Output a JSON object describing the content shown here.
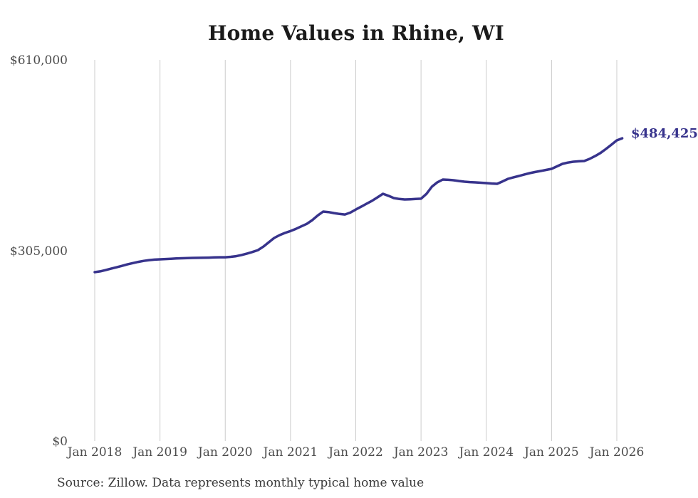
{
  "title": "Home Values in Rhine, WI",
  "end_label": "$484,425",
  "source_note": "Source: Zillow. Data represents monthly typical home value",
  "colors": {
    "line": "#37338c",
    "grid": "#cccccc",
    "title": "#1a1a1a",
    "tick": "#4c4c4c",
    "source": "#3a3a3a",
    "background": "#ffffff"
  },
  "chart_data": {
    "type": "line",
    "title": "Home Values in Rhine, WI",
    "xlabel": "",
    "ylabel": "",
    "ylim": [
      0,
      610000
    ],
    "grid": "vertical-only",
    "legend": "none",
    "frequency": "monthly",
    "x_start": "Jan 2018",
    "x_end": "Feb 2026",
    "x_tick_labels": [
      "Jan 2018",
      "Jan 2019",
      "Jan 2020",
      "Jan 2021",
      "Jan 2022",
      "Jan 2023",
      "Jan 2024",
      "Jan 2025",
      "Jan 2026"
    ],
    "y_tick_labels": [
      "$0",
      "$305,000",
      "$610,000"
    ],
    "last_value": 484425,
    "series": [
      {
        "name": "Typical home value",
        "values": [
          270200,
          271500,
          273500,
          275800,
          278000,
          280300,
          282600,
          284700,
          286600,
          288200,
          289500,
          290300,
          290700,
          291200,
          291700,
          292100,
          292500,
          292800,
          293000,
          293100,
          293300,
          293500,
          293800,
          294000,
          294100,
          294700,
          295800,
          297700,
          300000,
          302500,
          305500,
          311000,
          318000,
          325000,
          329500,
          333000,
          336000,
          339500,
          343500,
          347500,
          353500,
          361000,
          367100,
          366300,
          364800,
          363400,
          362500,
          365500,
          370500,
          375000,
          379800,
          384500,
          390000,
          395600,
          392500,
          388800,
          387300,
          386500,
          386900,
          387300,
          387800,
          395500,
          407000,
          414000,
          418400,
          418000,
          417300,
          416100,
          415000,
          414400,
          413900,
          413300,
          412800,
          412100,
          411600,
          415500,
          419600,
          422000,
          424100,
          426500,
          428700,
          430500,
          432100,
          433800,
          435500,
          439500,
          443500,
          445600,
          446900,
          447600,
          448100,
          451500,
          456000,
          461000,
          467400,
          474200,
          481200,
          484425
        ]
      }
    ]
  }
}
